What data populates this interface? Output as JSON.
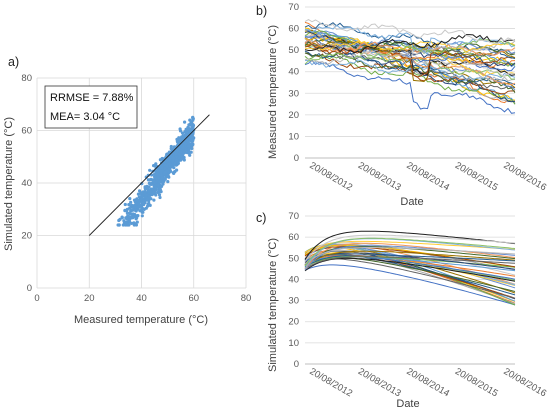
{
  "colors": {
    "scatter_points": "#5b9bd5",
    "fit_line": "#222222",
    "grid": "#d9d9d9",
    "axis": "#bfbfbf",
    "series_palette": [
      "#4472c4",
      "#ed7d31",
      "#a5a5a5",
      "#ffc000",
      "#5b9bd5",
      "#70ad47",
      "#264478",
      "#9e480e",
      "#636363",
      "#997300",
      "#255e91",
      "#43682b",
      "#698ed0",
      "#f1975a",
      "#b7b7b7",
      "#ffcd33",
      "#7cafdd",
      "#8cc168",
      "#1f1f1f",
      "#c9c9c9"
    ]
  },
  "chart_data": [
    {
      "panel_label": "a)",
      "type": "scatter",
      "xlabel": "Measured temperature (°C)",
      "ylabel": "Simulated temperature (°C)",
      "xlim": [
        0,
        80
      ],
      "ylim": [
        0,
        80
      ],
      "xticks": [
        "0",
        "20",
        "40",
        "60",
        "80"
      ],
      "yticks": [
        "0",
        "20",
        "40",
        "60",
        "80"
      ],
      "grid": true,
      "annotation": [
        "RRMSE = 7.88%",
        "MEA= 3.04 °C"
      ],
      "reference_line": {
        "x": [
          20,
          66
        ],
        "y": [
          20,
          66
        ]
      },
      "point_cloud": {
        "count": 900,
        "x_range": [
          30,
          60
        ],
        "y_range": [
          24,
          65
        ],
        "approx_slope": 1.05
      }
    },
    {
      "panel_label": "b)",
      "type": "line",
      "xlabel": "Date",
      "ylabel": "Measured temperature (°C)",
      "ylim": [
        0,
        70
      ],
      "yticks": [
        "0",
        "10",
        "20",
        "30",
        "40",
        "50",
        "60",
        "70"
      ],
      "xticks": [
        "20/08/2012",
        "20/08/2013",
        "20/08/2014",
        "20/08/2015",
        "20/08/2016"
      ],
      "grid": true,
      "series_count": 40,
      "start_range": [
        44,
        63
      ],
      "end_range": [
        24,
        56
      ]
    },
    {
      "panel_label": "c)",
      "type": "line",
      "xlabel": "Date",
      "ylabel": "Simulated temperature  (°C)",
      "ylim": [
        0,
        70
      ],
      "yticks": [
        "0",
        "10",
        "20",
        "30",
        "40",
        "50",
        "60",
        "70"
      ],
      "xticks": [
        "20/08/2012",
        "20/08/2013",
        "20/08/2014",
        "20/08/2015",
        "20/08/2016"
      ],
      "grid": true,
      "series_count": 40,
      "start_range": [
        44,
        53
      ],
      "end_range": [
        26,
        56
      ]
    }
  ]
}
